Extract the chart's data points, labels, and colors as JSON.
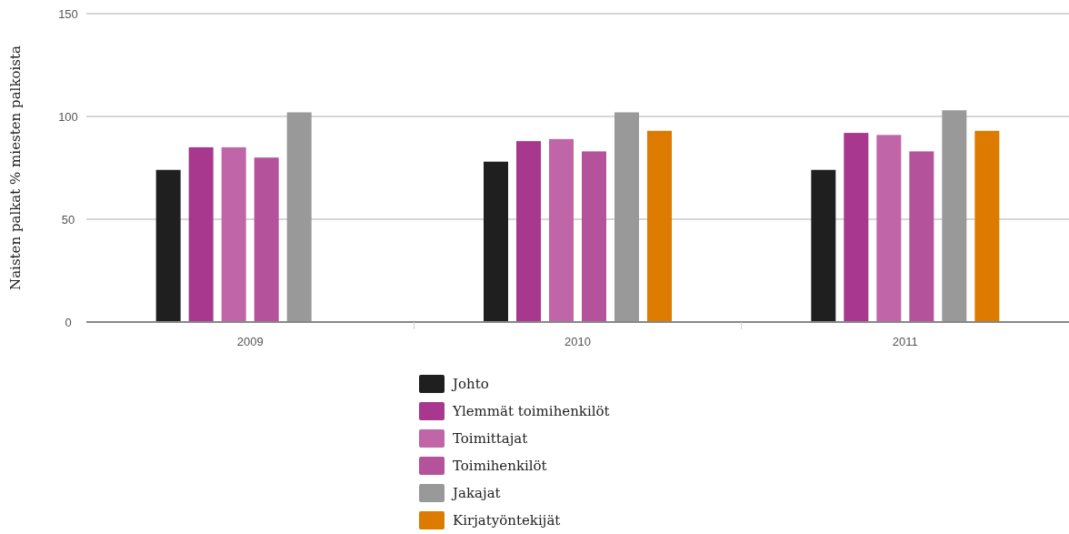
{
  "chart_data": {
    "type": "bar",
    "ylabel": "Naisten palkat % miesten palkoista",
    "categories": [
      "2009",
      "2010",
      "2011"
    ],
    "ylim": [
      0,
      150
    ],
    "yticks": [
      0,
      50,
      100,
      150
    ],
    "grid": "y",
    "legend": "bottom",
    "series": [
      {
        "name": "Johto",
        "color": "#1f1f1f",
        "values": [
          74,
          78,
          74
        ]
      },
      {
        "name": "Ylemmät toimihenkilöt",
        "color": "#a8388e",
        "values": [
          85,
          88,
          92
        ]
      },
      {
        "name": "Toimittajat",
        "color": "#c066a8",
        "values": [
          85,
          89,
          91
        ]
      },
      {
        "name": "Toimihenkilöt",
        "color": "#b5529c",
        "values": [
          80,
          83,
          83
        ]
      },
      {
        "name": "Jakajat",
        "color": "#999999",
        "values": [
          102,
          102,
          103
        ]
      },
      {
        "name": "Kirjatyöntekijät",
        "color": "#dd7a00",
        "values": [
          null,
          93,
          93
        ]
      }
    ]
  }
}
